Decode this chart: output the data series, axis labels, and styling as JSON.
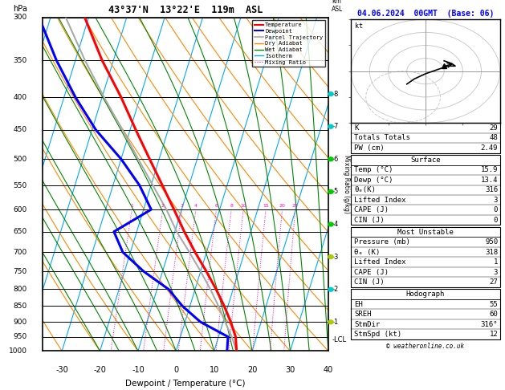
{
  "title_main": "43°37'N  13°22'E  119m  ASL",
  "title_date": "04.06.2024  00GMT  (Base: 06)",
  "xlabel": "Dewpoint / Temperature (°C)",
  "xmin": -35,
  "xmax": 40,
  "skew_factor": 27,
  "pressure_levels": [
    300,
    350,
    400,
    450,
    500,
    550,
    600,
    650,
    700,
    750,
    800,
    850,
    900,
    950,
    1000
  ],
  "color_temp": "#ff0000",
  "color_dewp": "#0000ff",
  "color_parcel": "#aaaaaa",
  "color_dry_adiabat": "#ff8800",
  "color_wet_adiabat": "#008800",
  "color_isotherm": "#00aaff",
  "color_mixing_ratio": "#ff00cc",
  "temp_profile_p": [
    1000,
    950,
    900,
    850,
    800,
    750,
    700,
    650,
    600,
    550,
    500,
    450,
    400,
    350,
    300
  ],
  "temp_profile_t": [
    15.9,
    14.5,
    12.0,
    9.0,
    5.5,
    1.5,
    -3.0,
    -7.5,
    -12.0,
    -17.0,
    -22.5,
    -28.5,
    -35.0,
    -43.0,
    -51.0
  ],
  "dewp_profile_p": [
    1000,
    950,
    900,
    850,
    800,
    750,
    700,
    650,
    600,
    550,
    500,
    450,
    400,
    350,
    300
  ],
  "dewp_profile_d": [
    13.4,
    12.5,
    4.0,
    -2.0,
    -7.0,
    -15.0,
    -22.0,
    -26.0,
    -18.0,
    -23.0,
    -30.0,
    -39.0,
    -47.0,
    -55.0,
    -63.0
  ],
  "parcel_profile_p": [
    1000,
    950,
    900,
    850,
    800,
    750,
    700,
    650,
    600,
    550,
    500,
    450,
    400,
    350,
    300
  ],
  "parcel_profile_t": [
    15.9,
    13.5,
    10.5,
    7.5,
    4.0,
    0.0,
    -4.5,
    -9.5,
    -14.0,
    -19.5,
    -25.5,
    -32.0,
    -39.5,
    -47.5,
    -56.0
  ],
  "lcl_pressure": 960,
  "mixing_ratio_values": [
    1,
    2,
    3,
    4,
    6,
    8,
    10,
    15,
    20,
    25
  ],
  "info_K": 29,
  "info_TT": 48,
  "info_PW": "2.49",
  "surface_temp": "15.9",
  "surface_dewp": "13.4",
  "surface_theta_e": 316,
  "surface_LI": 3,
  "surface_CAPE": 0,
  "surface_CIN": 0,
  "mu_pressure": 950,
  "mu_theta_e": 318,
  "mu_LI": 1,
  "mu_CAPE": 3,
  "mu_CIN": 27,
  "hodo_EH": 55,
  "hodo_SREH": 60,
  "hodo_StmDir": "316°",
  "hodo_StmSpd": 12,
  "copyright": "© weatheronline.co.uk",
  "wind_barb_km": [
    8,
    7,
    6,
    5,
    4,
    3,
    2,
    1
  ],
  "wind_barb_colors": [
    "#00cccc",
    "#00cccc",
    "#00cc00",
    "#00cc00",
    "#00cc00",
    "#aacc00",
    "#00cccc",
    "#aacc00"
  ]
}
